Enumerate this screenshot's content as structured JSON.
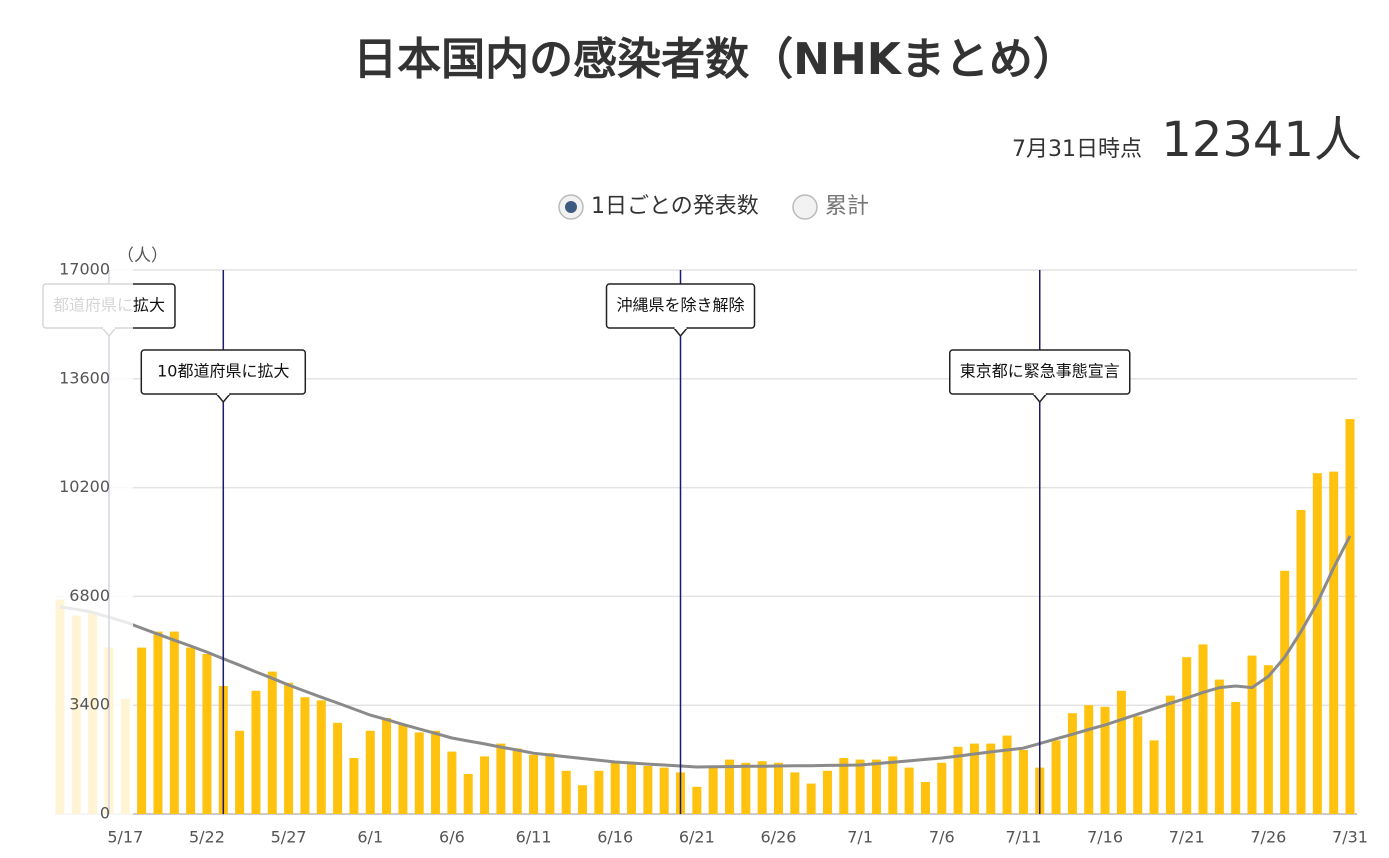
{
  "chart_data": {
    "type": "bar",
    "title": "日本国内の感染者数（NHKまとめ）",
    "as_of": "7月31日時点",
    "headline": "12341人",
    "options": [
      "1日ごとの発表数",
      "累計"
    ],
    "selected_option": 0,
    "y_unit": "（人）",
    "ylim": [
      0,
      17000
    ],
    "yticks": [
      0,
      3400,
      6800,
      10200,
      13600,
      17000
    ],
    "grid": true,
    "color": "#ffc20e",
    "categories": [
      null,
      null,
      null,
      null,
      "5/17",
      null,
      null,
      null,
      null,
      "5/22",
      null,
      null,
      null,
      null,
      "5/27",
      null,
      null,
      null,
      null,
      "6/1",
      null,
      null,
      null,
      null,
      "6/6",
      null,
      null,
      null,
      null,
      "6/11",
      null,
      null,
      null,
      null,
      "6/16",
      null,
      null,
      null,
      null,
      "6/21",
      null,
      null,
      null,
      null,
      "6/26",
      null,
      null,
      null,
      null,
      "7/1",
      null,
      null,
      null,
      null,
      "7/6",
      null,
      null,
      null,
      null,
      "7/11",
      null,
      null,
      null,
      null,
      "7/16",
      null,
      null,
      null,
      null,
      "7/21",
      null,
      null,
      null,
      null,
      "7/26",
      null,
      null,
      null,
      null,
      "7/31"
    ],
    "values": [
      6700,
      6200,
      6300,
      5200,
      3600,
      5200,
      5700,
      5700,
      5200,
      5000,
      4000,
      2600,
      3850,
      4450,
      4100,
      3650,
      3550,
      2850,
      1750,
      2600,
      3000,
      2800,
      2550,
      2600,
      1950,
      1250,
      1800,
      2200,
      2050,
      1850,
      1900,
      1350,
      900,
      1350,
      1600,
      1600,
      1500,
      1450,
      1300,
      850,
      1450,
      1700,
      1600,
      1650,
      1600,
      1300,
      950,
      1350,
      1750,
      1700,
      1700,
      1800,
      1450,
      1000,
      1600,
      2100,
      2200,
      2200,
      2450,
      2000,
      1450,
      2300,
      3150,
      3400,
      3350,
      3850,
      3050,
      2300,
      3700,
      4900,
      5300,
      4200,
      3500,
      4950,
      4650,
      7600,
      9500,
      10650,
      10700,
      12341
    ],
    "line": {
      "color": "#8a8a8a",
      "values": [
        6470,
        6400,
        6300,
        6150,
        6000,
        5810,
        5620,
        5430,
        5250,
        5060,
        4850,
        4650,
        4440,
        4240,
        4030,
        3840,
        3650,
        3470,
        3280,
        3090,
        2950,
        2800,
        2660,
        2520,
        2375,
        2280,
        2190,
        2090,
        2000,
        1900,
        1845,
        1790,
        1735,
        1680,
        1625,
        1595,
        1560,
        1530,
        1500,
        1470,
        1475,
        1480,
        1490,
        1495,
        1500,
        1505,
        1510,
        1520,
        1525,
        1530,
        1575,
        1620,
        1660,
        1705,
        1750,
        1810,
        1875,
        1940,
        2000,
        2060,
        2200,
        2350,
        2490,
        2640,
        2780,
        2950,
        3120,
        3290,
        3460,
        3625,
        3800,
        3950,
        4000,
        3950,
        4300,
        4900,
        5700,
        6600,
        7700,
        8690
      ]
    },
    "annotations": [
      {
        "x": 3,
        "label": "都道府県に拡大"
      },
      {
        "x": 10,
        "label": "10都道府県に拡大"
      },
      {
        "x": 38,
        "label": "沖縄県を除き解除"
      },
      {
        "x": 60,
        "label": "東京都に緊急事態宣言"
      }
    ]
  }
}
